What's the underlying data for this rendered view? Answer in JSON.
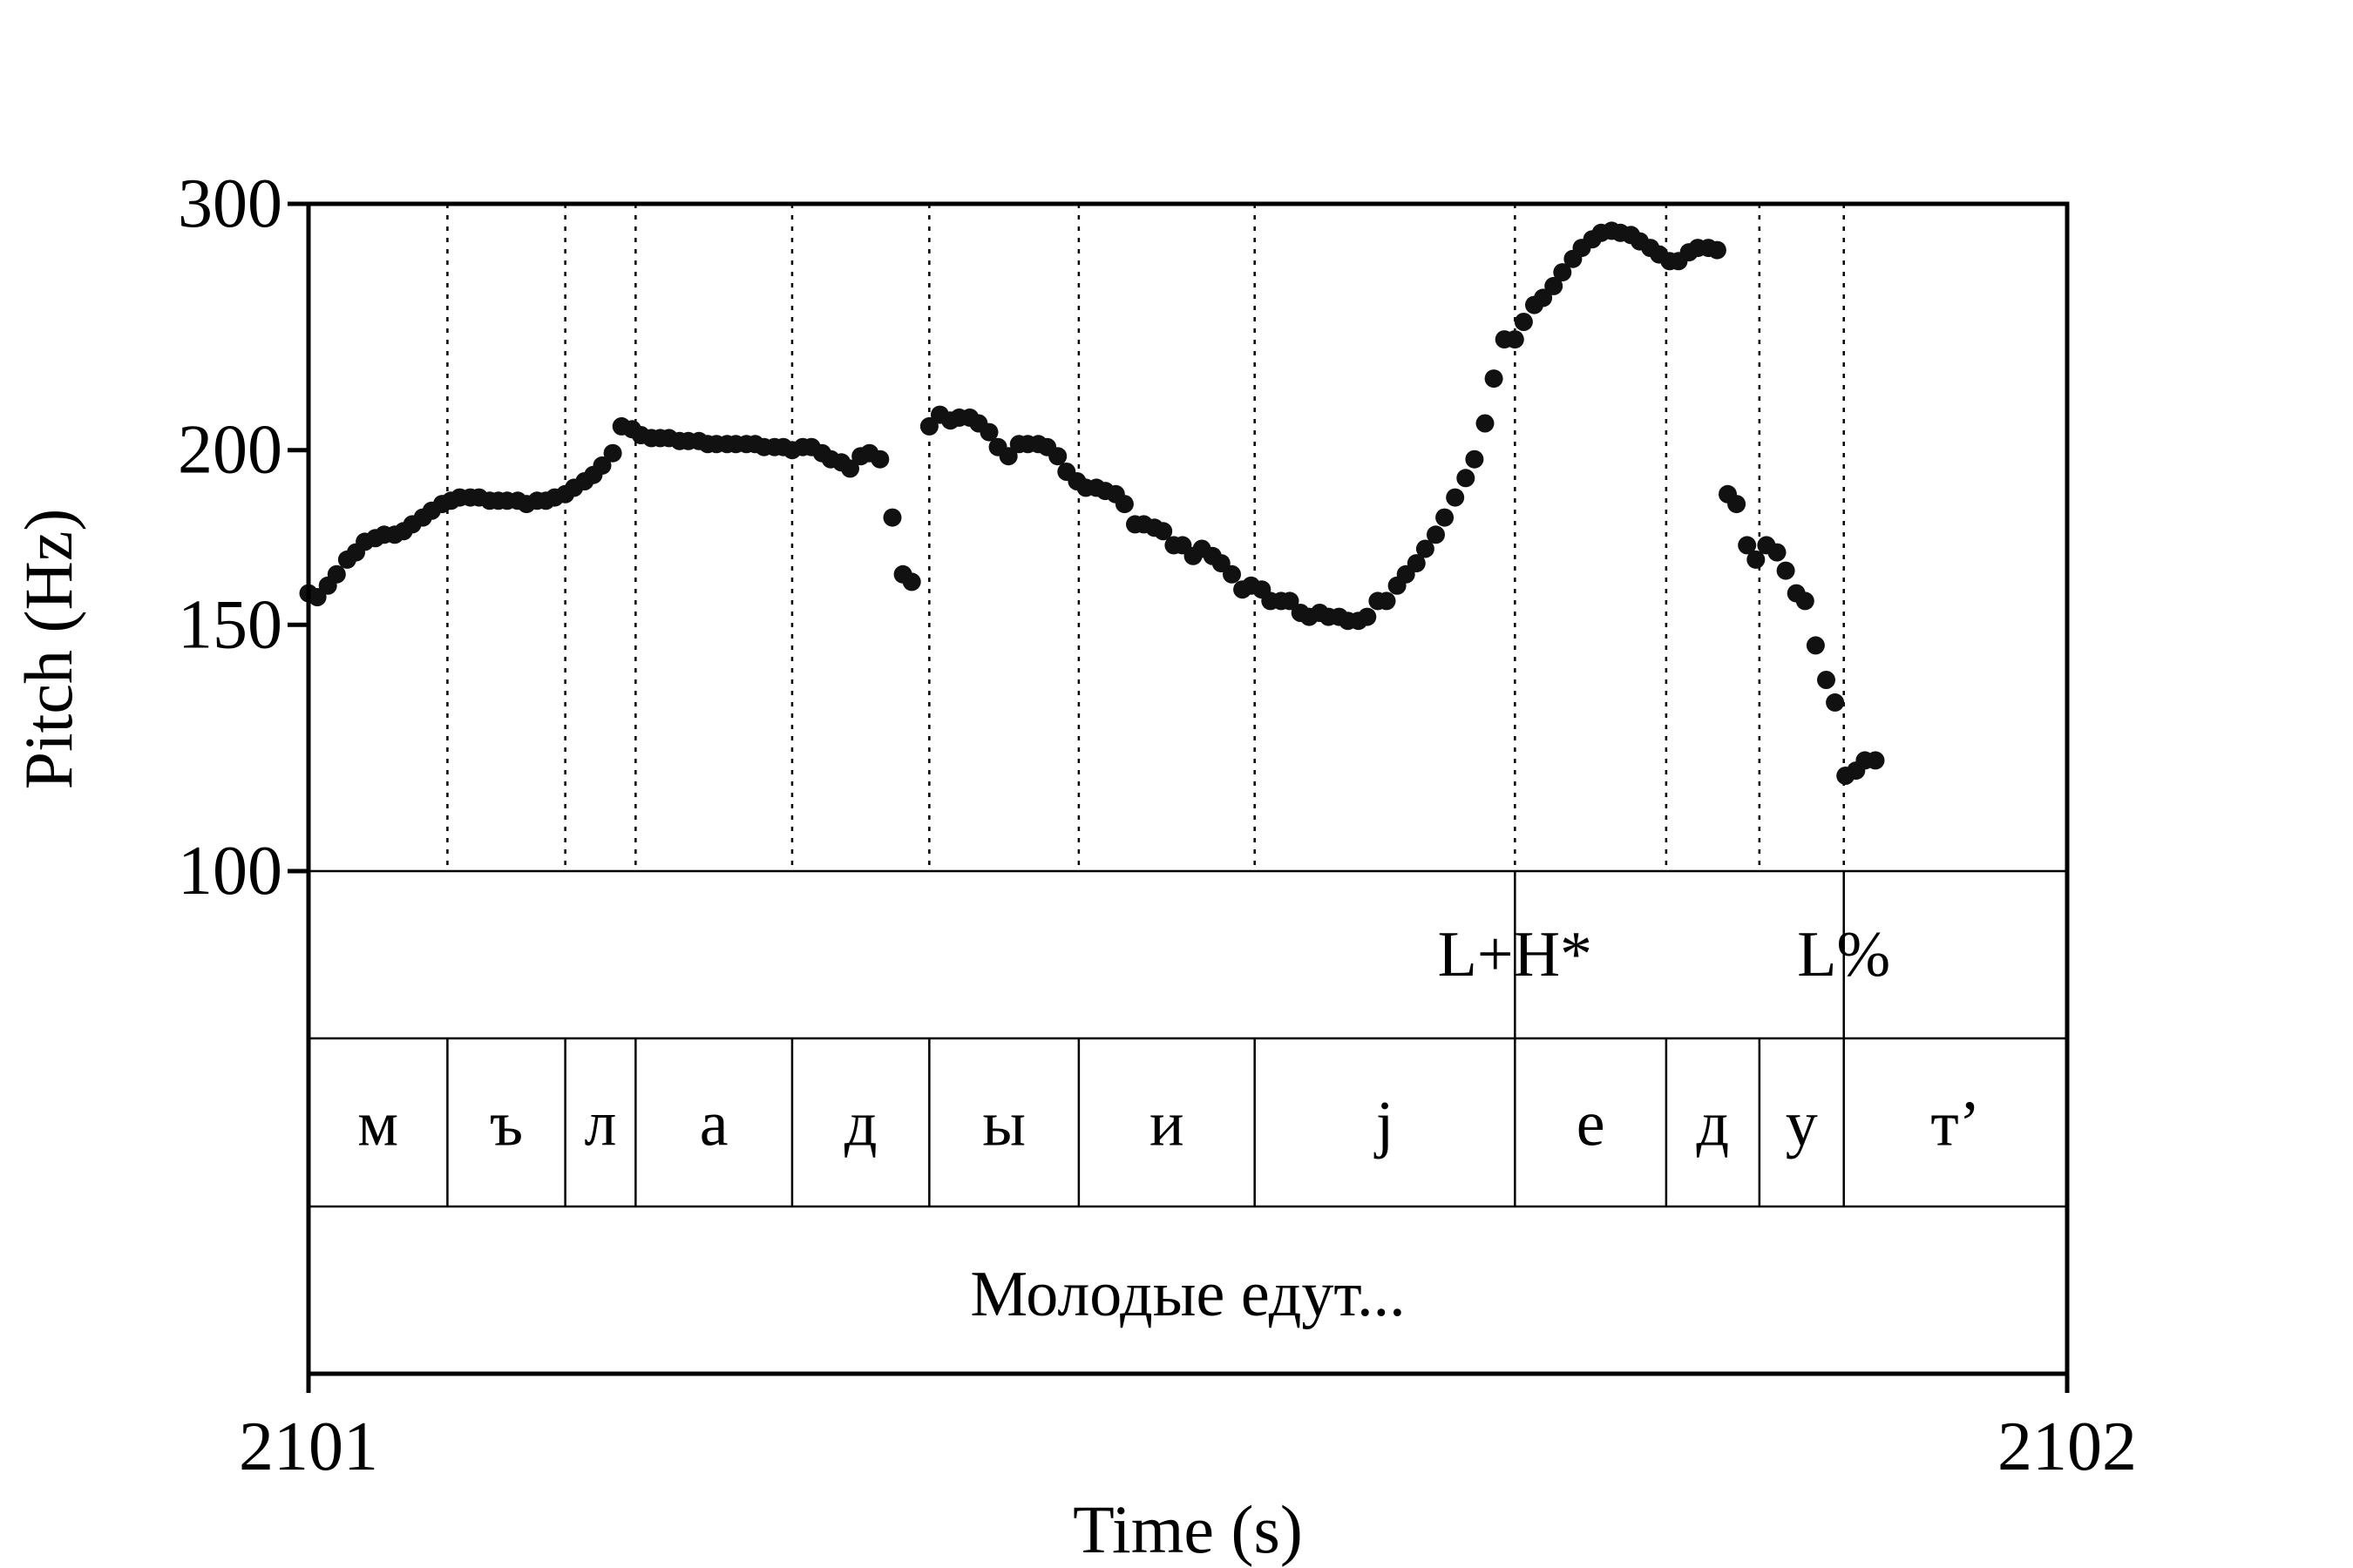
{
  "chart_data": {
    "type": "scatter",
    "title": "",
    "xlabel": "Time (s)",
    "ylabel": "Pitch (Hz)",
    "xlim": [
      2101,
      2102
    ],
    "ylim": [
      100,
      300
    ],
    "y_scale": "log",
    "xticks": [
      "2101",
      "2102"
    ],
    "yticks": [
      "100",
      "150",
      "200",
      "300"
    ],
    "grid": false,
    "tones": [
      {
        "label": "L+H*",
        "boundary": 2101.686
      },
      {
        "label": "L%",
        "boundary": 2101.873
      }
    ],
    "segments": [
      {
        "label": "м",
        "start": 2101.0,
        "end": 2101.079
      },
      {
        "label": "ъ",
        "start": 2101.079,
        "end": 2101.146
      },
      {
        "label": "л",
        "start": 2101.146,
        "end": 2101.186
      },
      {
        "label": "а",
        "start": 2101.186,
        "end": 2101.275
      },
      {
        "label": "д",
        "start": 2101.275,
        "end": 2101.353
      },
      {
        "label": "ы",
        "start": 2101.353,
        "end": 2101.438
      },
      {
        "label": "и",
        "start": 2101.438,
        "end": 2101.538
      },
      {
        "label": "j",
        "start": 2101.538,
        "end": 2101.686
      },
      {
        "label": "е",
        "start": 2101.686,
        "end": 2101.772
      },
      {
        "label": "д",
        "start": 2101.772,
        "end": 2101.825
      },
      {
        "label": "у",
        "start": 2101.825,
        "end": 2101.873
      },
      {
        "label": "т’",
        "start": 2101.873,
        "end": 2102.0
      }
    ],
    "caption": "Молодые едут...",
    "series": [
      {
        "points": [
          [
            2101.0,
            158
          ],
          [
            2101.005,
            157
          ],
          [
            2101.011,
            160
          ],
          [
            2101.016,
            163
          ],
          [
            2101.022,
            167
          ],
          [
            2101.027,
            169
          ],
          [
            2101.032,
            172
          ],
          [
            2101.038,
            173
          ],
          [
            2101.043,
            174
          ],
          [
            2101.049,
            174
          ],
          [
            2101.054,
            175
          ],
          [
            2101.059,
            177
          ],
          [
            2101.065,
            179
          ],
          [
            2101.07,
            181
          ],
          [
            2101.076,
            183
          ],
          [
            2101.081,
            184
          ],
          [
            2101.086,
            185
          ],
          [
            2101.092,
            185
          ],
          [
            2101.097,
            185
          ],
          [
            2101.103,
            184
          ],
          [
            2101.108,
            184
          ],
          [
            2101.113,
            184
          ],
          [
            2101.119,
            184
          ],
          [
            2101.124,
            183
          ],
          [
            2101.13,
            184
          ],
          [
            2101.135,
            184
          ],
          [
            2101.14,
            185
          ],
          [
            2101.146,
            186
          ],
          [
            2101.151,
            188
          ],
          [
            2101.157,
            190
          ],
          [
            2101.162,
            192
          ],
          [
            2101.167,
            195
          ],
          [
            2101.173,
            199
          ],
          [
            2101.178,
            208
          ],
          [
            2101.184,
            207
          ],
          [
            2101.189,
            205
          ],
          [
            2101.195,
            204
          ],
          [
            2101.2,
            204
          ],
          [
            2101.205,
            204
          ],
          [
            2101.211,
            203
          ],
          [
            2101.216,
            203
          ],
          [
            2101.222,
            203
          ],
          [
            2101.227,
            202
          ],
          [
            2101.232,
            202
          ],
          [
            2101.238,
            202
          ],
          [
            2101.243,
            202
          ],
          [
            2101.249,
            202
          ],
          [
            2101.254,
            202
          ],
          [
            2101.259,
            201
          ],
          [
            2101.265,
            201
          ],
          [
            2101.27,
            201
          ],
          [
            2101.275,
            200
          ],
          [
            2101.281,
            201
          ],
          [
            2101.286,
            201
          ],
          [
            2101.292,
            199
          ],
          [
            2101.297,
            197
          ],
          [
            2101.303,
            196
          ],
          [
            2101.308,
            194
          ],
          [
            2101.314,
            198
          ],
          [
            2101.319,
            199
          ],
          [
            2101.325,
            197
          ],
          [
            2101.332,
            179
          ],
          [
            2101.338,
            163
          ],
          [
            2101.343,
            161
          ],
          [
            2101.353,
            208
          ],
          [
            2101.359,
            212
          ],
          [
            2101.365,
            210
          ],
          [
            2101.37,
            211
          ],
          [
            2101.376,
            211
          ],
          [
            2101.381,
            209
          ],
          [
            2101.387,
            206
          ],
          [
            2101.392,
            201
          ],
          [
            2101.398,
            198
          ],
          [
            2101.404,
            202
          ],
          [
            2101.409,
            202
          ],
          [
            2101.415,
            202
          ],
          [
            2101.42,
            201
          ],
          [
            2101.426,
            198
          ],
          [
            2101.431,
            193
          ],
          [
            2101.437,
            190
          ],
          [
            2101.442,
            188
          ],
          [
            2101.448,
            188
          ],
          [
            2101.453,
            187
          ],
          [
            2101.459,
            186
          ],
          [
            2101.464,
            183
          ],
          [
            2101.47,
            177
          ],
          [
            2101.475,
            177
          ],
          [
            2101.481,
            176
          ],
          [
            2101.486,
            175
          ],
          [
            2101.492,
            171
          ],
          [
            2101.497,
            171
          ],
          [
            2101.503,
            168
          ],
          [
            2101.508,
            170
          ],
          [
            2101.514,
            168
          ],
          [
            2101.519,
            166
          ],
          [
            2101.525,
            163
          ],
          [
            2101.531,
            159
          ],
          [
            2101.536,
            160
          ],
          [
            2101.542,
            159
          ],
          [
            2101.547,
            156
          ],
          [
            2101.553,
            156
          ],
          [
            2101.558,
            156
          ],
          [
            2101.564,
            153
          ],
          [
            2101.569,
            152
          ],
          [
            2101.575,
            153
          ],
          [
            2101.58,
            152
          ],
          [
            2101.586,
            152
          ],
          [
            2101.591,
            151
          ],
          [
            2101.597,
            151
          ],
          [
            2101.602,
            152
          ],
          [
            2101.608,
            156
          ],
          [
            2101.613,
            156
          ],
          [
            2101.619,
            160
          ],
          [
            2101.624,
            163
          ],
          [
            2101.63,
            166
          ],
          [
            2101.635,
            170
          ],
          [
            2101.641,
            174
          ],
          [
            2101.646,
            179
          ],
          [
            2101.652,
            185
          ],
          [
            2101.658,
            191
          ],
          [
            2101.663,
            197
          ],
          [
            2101.669,
            209
          ],
          [
            2101.674,
            225
          ],
          [
            2101.68,
            240
          ],
          [
            2101.686,
            240
          ],
          [
            2101.691,
            247
          ],
          [
            2101.697,
            254
          ],
          [
            2101.702,
            257
          ],
          [
            2101.708,
            262
          ],
          [
            2101.713,
            268
          ],
          [
            2101.719,
            274
          ],
          [
            2101.724,
            279
          ],
          [
            2101.73,
            283
          ],
          [
            2101.735,
            286
          ],
          [
            2101.741,
            287
          ],
          [
            2101.746,
            286
          ],
          [
            2101.752,
            285
          ],
          [
            2101.757,
            282
          ],
          [
            2101.763,
            279
          ],
          [
            2101.768,
            276
          ],
          [
            2101.774,
            273
          ],
          [
            2101.779,
            273
          ],
          [
            2101.785,
            277
          ],
          [
            2101.79,
            279
          ],
          [
            2101.796,
            279
          ],
          [
            2101.801,
            278
          ],
          [
            2101.807,
            186
          ],
          [
            2101.812,
            183
          ],
          [
            2101.818,
            171
          ],
          [
            2101.823,
            167
          ],
          [
            2101.829,
            171
          ],
          [
            2101.835,
            169
          ],
          [
            2101.84,
            164
          ],
          [
            2101.846,
            158
          ],
          [
            2101.851,
            156
          ],
          [
            2101.857,
            145
          ],
          [
            2101.863,
            137
          ],
          [
            2101.868,
            132
          ],
          [
            2101.874,
            117
          ],
          [
            2101.88,
            118
          ],
          [
            2101.885,
            120
          ],
          [
            2101.891,
            120
          ]
        ]
      }
    ]
  }
}
